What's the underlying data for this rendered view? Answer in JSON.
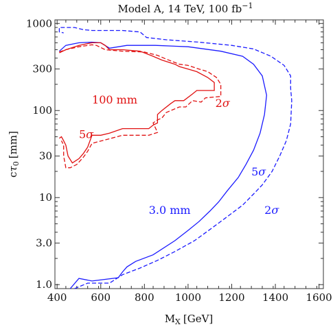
{
  "chart_data": {
    "type": "line",
    "title": "Model A, 14 TeV, 100 fb",
    "title_superscript": "−1",
    "xlabel_main": "M",
    "xlabel_sub": "X",
    "xlabel_unit": "[GeV]",
    "ylabel_prefix": "c",
    "ylabel_greek": "τ",
    "ylabel_sub": "0",
    "ylabel_unit": "[mm]",
    "x_scale": "linear",
    "y_scale": "log",
    "xlim": [
      390,
      1620
    ],
    "ylim": [
      0.9,
      1100
    ],
    "x_ticks": [
      {
        "value": 400,
        "label": "400"
      },
      {
        "value": 600,
        "label": "600"
      },
      {
        "value": 800,
        "label": "800"
      },
      {
        "value": 1000,
        "label": "1000"
      },
      {
        "value": 1200,
        "label": "1200"
      },
      {
        "value": 1400,
        "label": "1400"
      },
      {
        "value": 1600,
        "label": "1600"
      }
    ],
    "y_ticks": [
      {
        "value": 1,
        "label": "1.0"
      },
      {
        "value": 3,
        "label": "3.0"
      },
      {
        "value": 10,
        "label": "10"
      },
      {
        "value": 30,
        "label": "30"
      },
      {
        "value": 100,
        "label": "100"
      },
      {
        "value": 300,
        "label": "300"
      },
      {
        "value": 1000,
        "label": "1000"
      }
    ],
    "grid": false,
    "colors": {
      "blue": "#1a1aff",
      "red": "#e01010",
      "frame": "#333333"
    },
    "series": [
      {
        "color": "#1a1aff",
        "dash": false,
        "points": [
          [
            460,
            0.9
          ],
          [
            500,
            1.18
          ],
          [
            560,
            1.1
          ],
          [
            680,
            1.2
          ],
          [
            700,
            1.4
          ],
          [
            720,
            1.6
          ],
          [
            760,
            1.85
          ],
          [
            840,
            2.2
          ],
          [
            940,
            3.2
          ],
          [
            1000,
            4.2
          ],
          [
            1050,
            5.3
          ],
          [
            1100,
            7
          ],
          [
            1140,
            8.9
          ],
          [
            1180,
            12
          ],
          [
            1230,
            17
          ],
          [
            1265,
            24
          ],
          [
            1300,
            35
          ],
          [
            1330,
            55
          ],
          [
            1350,
            90
          ],
          [
            1360,
            150
          ],
          [
            1340,
            250
          ],
          [
            1300,
            340
          ],
          [
            1250,
            420
          ],
          [
            1150,
            480
          ],
          [
            1000,
            540
          ],
          [
            850,
            560
          ],
          [
            720,
            560
          ],
          [
            640,
            520
          ],
          [
            600,
            600
          ],
          [
            560,
            610
          ],
          [
            500,
            600
          ],
          [
            440,
            560
          ],
          [
            410,
            480
          ]
        ]
      },
      {
        "color": "#1a1aff",
        "dash": true,
        "points": [
          [
            480,
            0.9
          ],
          [
            540,
            1.04
          ],
          [
            640,
            1.04
          ],
          [
            700,
            1.3
          ],
          [
            780,
            1.55
          ],
          [
            860,
            1.9
          ],
          [
            940,
            2.4
          ],
          [
            1030,
            3.2
          ],
          [
            1100,
            4.3
          ],
          [
            1170,
            5.8
          ],
          [
            1250,
            8.2
          ],
          [
            1300,
            11
          ],
          [
            1340,
            14
          ],
          [
            1385,
            20
          ],
          [
            1420,
            30
          ],
          [
            1450,
            45
          ],
          [
            1470,
            70
          ],
          [
            1475,
            130
          ],
          [
            1470,
            180
          ],
          [
            1470,
            250
          ],
          [
            1440,
            330
          ],
          [
            1380,
            420
          ],
          [
            1300,
            510
          ],
          [
            1200,
            560
          ],
          [
            1050,
            610
          ],
          [
            900,
            650
          ],
          [
            810,
            690
          ],
          [
            780,
            800
          ],
          [
            700,
            830
          ],
          [
            560,
            830
          ],
          [
            520,
            850
          ],
          [
            480,
            900
          ],
          [
            410,
            900
          ],
          [
            410,
            800
          ],
          [
            430,
            780
          ]
        ]
      },
      {
        "color": "#e01010",
        "dash": false,
        "points": [
          [
            410,
            460
          ],
          [
            440,
            500
          ],
          [
            500,
            560
          ],
          [
            560,
            600
          ],
          [
            600,
            600
          ],
          [
            620,
            560
          ],
          [
            640,
            500
          ],
          [
            700,
            500
          ],
          [
            780,
            480
          ],
          [
            840,
            420
          ],
          [
            880,
            380
          ],
          [
            940,
            340
          ],
          [
            960,
            320
          ],
          [
            1000,
            300
          ],
          [
            1040,
            280
          ],
          [
            1090,
            240
          ],
          [
            1120,
            210
          ],
          [
            1120,
            170
          ],
          [
            1040,
            170
          ],
          [
            1020,
            155
          ],
          [
            980,
            130
          ],
          [
            940,
            130
          ],
          [
            920,
            120
          ],
          [
            880,
            100
          ],
          [
            860,
            90
          ],
          [
            860,
            72
          ],
          [
            840,
            68
          ],
          [
            820,
            62
          ],
          [
            800,
            62
          ],
          [
            700,
            62
          ],
          [
            640,
            55
          ],
          [
            600,
            52
          ],
          [
            560,
            52
          ],
          [
            540,
            38
          ],
          [
            520,
            32
          ],
          [
            500,
            28
          ],
          [
            470,
            25
          ],
          [
            450,
            30
          ],
          [
            440,
            40
          ],
          [
            430,
            45
          ],
          [
            420,
            50
          ],
          [
            410,
            48
          ]
        ]
      },
      {
        "color": "#e01010",
        "dash": true,
        "points": [
          [
            410,
            470
          ],
          [
            440,
            500
          ],
          [
            500,
            540
          ],
          [
            560,
            570
          ],
          [
            580,
            560
          ],
          [
            620,
            500
          ],
          [
            700,
            480
          ],
          [
            800,
            470
          ],
          [
            860,
            430
          ],
          [
            900,
            390
          ],
          [
            960,
            340
          ],
          [
            1000,
            330
          ],
          [
            1050,
            300
          ],
          [
            1090,
            280
          ],
          [
            1130,
            240
          ],
          [
            1150,
            200
          ],
          [
            1150,
            145
          ],
          [
            1080,
            140
          ],
          [
            1060,
            125
          ],
          [
            1020,
            130
          ],
          [
            990,
            110
          ],
          [
            960,
            110
          ],
          [
            900,
            95
          ],
          [
            880,
            82
          ],
          [
            860,
            78
          ],
          [
            840,
            72
          ],
          [
            860,
            56
          ],
          [
            820,
            52
          ],
          [
            700,
            52
          ],
          [
            620,
            46
          ],
          [
            560,
            42
          ],
          [
            540,
            34
          ],
          [
            520,
            29
          ],
          [
            490,
            24
          ],
          [
            460,
            22
          ],
          [
            440,
            22
          ],
          [
            430,
            30
          ],
          [
            430,
            40
          ],
          [
            420,
            45
          ]
        ]
      }
    ],
    "annotations": [
      {
        "text": "100 mm",
        "color": "#e01010",
        "x": 560,
        "y": 120
      },
      {
        "text": "5",
        "sigma": true,
        "color": "#e01010",
        "x": 500,
        "y": 48
      },
      {
        "text": "2",
        "sigma": true,
        "color": "#e01010",
        "x": 1125,
        "y": 110
      },
      {
        "text": "5",
        "sigma": true,
        "color": "#1a1aff",
        "x": 1290,
        "y": 18
      },
      {
        "text": "2",
        "sigma": true,
        "color": "#1a1aff",
        "x": 1350,
        "y": 6.5
      },
      {
        "text": "3.0 mm",
        "color": "#1a1aff",
        "x": 820,
        "y": 6.5
      }
    ]
  }
}
